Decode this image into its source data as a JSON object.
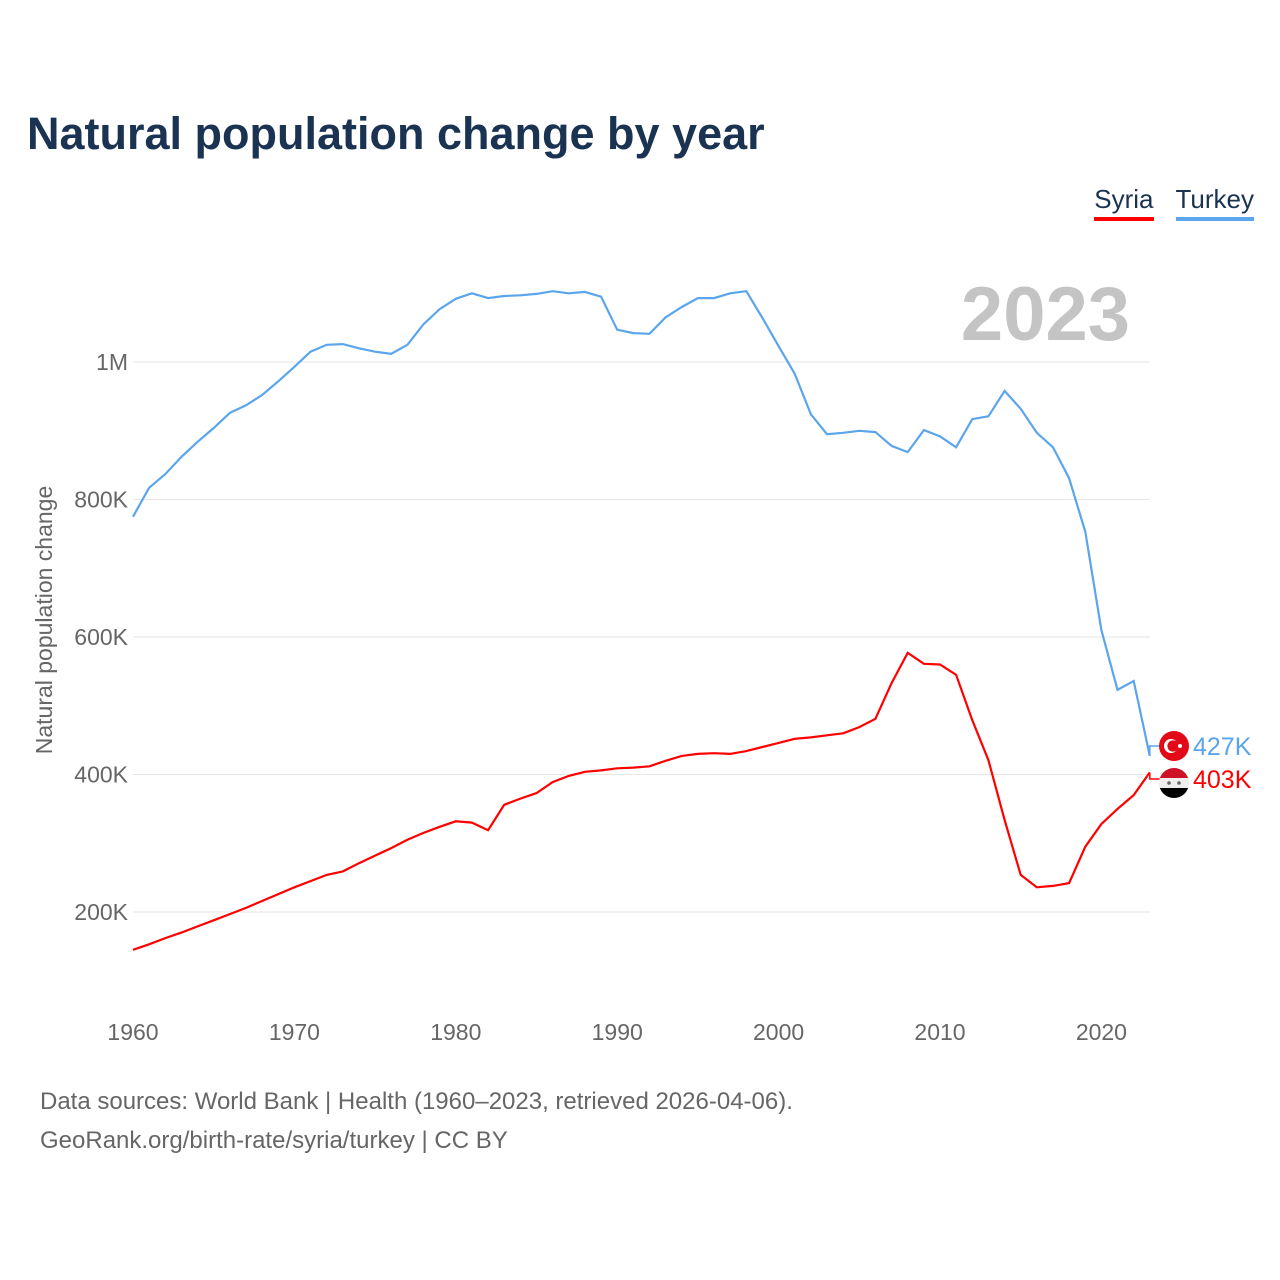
{
  "title": "Natural population change by year",
  "legend": [
    {
      "name": "Syria",
      "color": "#ff0000"
    },
    {
      "name": "Turkey",
      "color": "#5aa5ec"
    }
  ],
  "sources": [
    "Data sources: World Bank | Health (1960–2023, retrieved 2026-04-06).",
    "GeoRank.org/birth-rate/syria/turkey | CC BY"
  ],
  "chart_data": {
    "type": "line",
    "title": "Natural population change by year",
    "xlabel": "",
    "ylabel": "Natural population change",
    "year_label": "2023",
    "x_ticks": [
      1960,
      1970,
      1980,
      1990,
      2000,
      2010,
      2020
    ],
    "y_ticks": [
      {
        "v": 200000,
        "label": "200K"
      },
      {
        "v": 400000,
        "label": "400K"
      },
      {
        "v": 600000,
        "label": "600K"
      },
      {
        "v": 800000,
        "label": "800K"
      },
      {
        "v": 1000000,
        "label": "1M"
      }
    ],
    "xlim": [
      1960,
      2023
    ],
    "ylim": [
      80000,
      1120000
    ],
    "grid": true,
    "legend_position": "top-right",
    "x_start": 1960,
    "series": [
      {
        "name": "Turkey",
        "color": "#5aa5ec",
        "end_label": "427K",
        "values": [
          775,
          817,
          837,
          862,
          884,
          904,
          926,
          937,
          952,
          972,
          993,
          1015,
          1025,
          1026,
          1020,
          1015,
          1012,
          1025,
          1055,
          1077,
          1092,
          1100,
          1093,
          1096,
          1097,
          1099,
          1103,
          1100,
          1102,
          1095,
          1047,
          1042,
          1041,
          1065,
          1080,
          1093,
          1093,
          1100,
          1103,
          1064,
          1023,
          983,
          924,
          895,
          897,
          900,
          898,
          878,
          869,
          901,
          892,
          876,
          917,
          921,
          958,
          932,
          897,
          876,
          831,
          753,
          610,
          523,
          536,
          427
        ]
      },
      {
        "name": "Syria",
        "color": "#ff0000",
        "end_label": "403K",
        "values": [
          145,
          153,
          162,
          170,
          179,
          188,
          197,
          206,
          216,
          226,
          236,
          245,
          254,
          259,
          271,
          282,
          293,
          305,
          315,
          324,
          332,
          330,
          319,
          356,
          365,
          373,
          389,
          398,
          404,
          406,
          409,
          410,
          412,
          420,
          427,
          430,
          431,
          430,
          434,
          440,
          446,
          452,
          454,
          457,
          460,
          469,
          481,
          533,
          577,
          561,
          560,
          545,
          479,
          421,
          334,
          254,
          236,
          238,
          242,
          295,
          328,
          350,
          370,
          403
        ]
      }
    ]
  }
}
